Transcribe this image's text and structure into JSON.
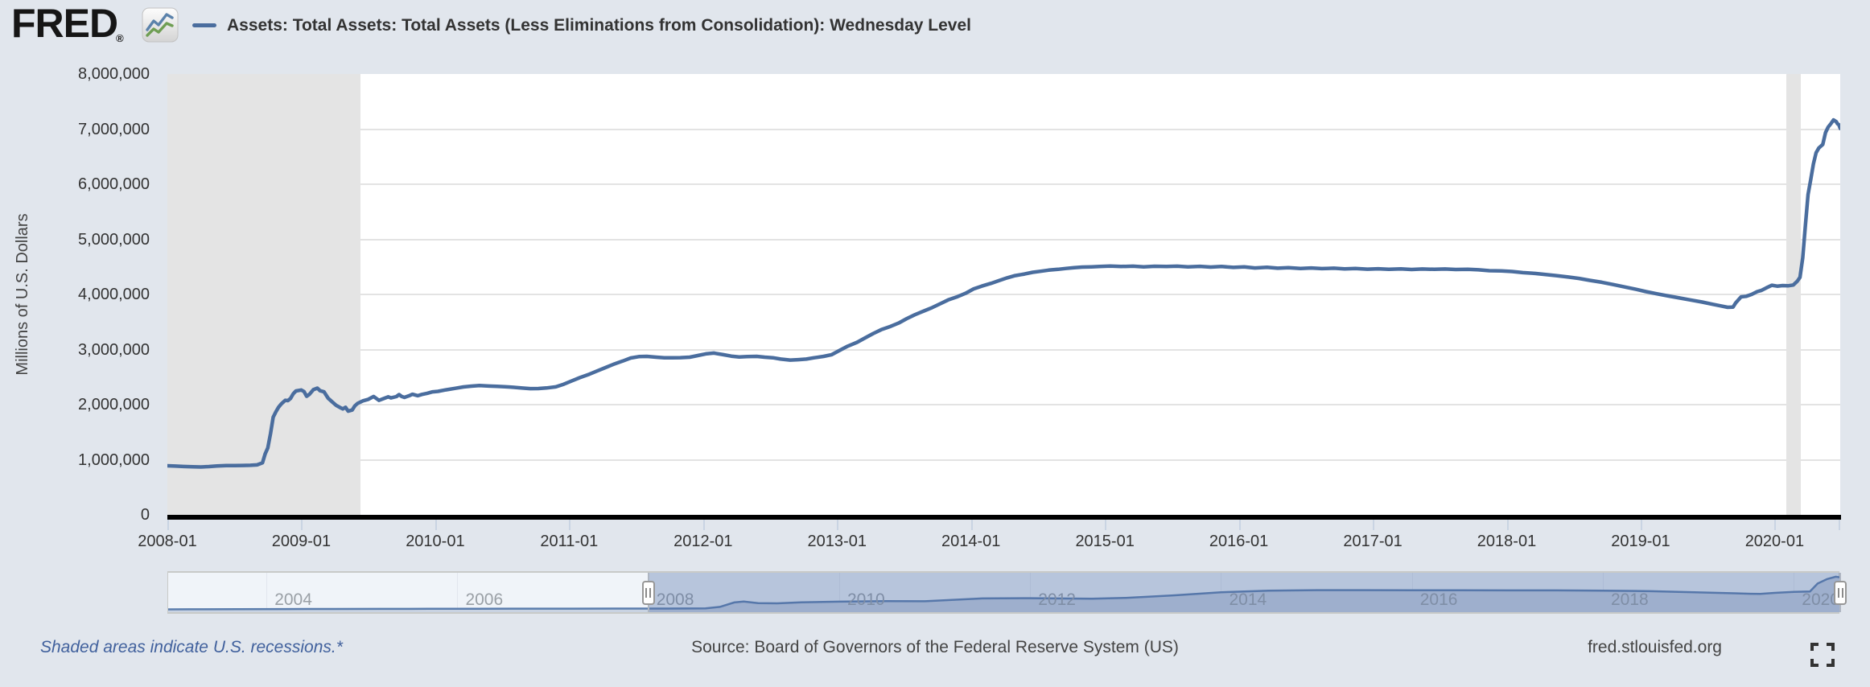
{
  "header": {
    "logo_text": "FRED",
    "logo_registered": "®",
    "legend_label": "Assets: Total Assets: Total Assets (Less Eliminations from Consolidation): Wednesday Level"
  },
  "y_axis": {
    "title": "Millions of U.S. Dollars",
    "tick_labels": [
      "8,000,000",
      "7,000,000",
      "6,000,000",
      "5,000,000",
      "4,000,000",
      "3,000,000",
      "2,000,000",
      "1,000,000",
      "0"
    ],
    "tick_values": [
      8000000,
      7000000,
      6000000,
      5000000,
      4000000,
      3000000,
      2000000,
      1000000,
      0
    ]
  },
  "x_axis": {
    "tick_labels": [
      "2008-01",
      "2009-01",
      "2010-01",
      "2011-01",
      "2012-01",
      "2013-01",
      "2014-01",
      "2015-01",
      "2016-01",
      "2017-01",
      "2018-01",
      "2019-01",
      "2020-01"
    ],
    "tick_years": [
      2008,
      2009,
      2010,
      2011,
      2012,
      2013,
      2014,
      2015,
      2016,
      2017,
      2018,
      2019,
      2020
    ]
  },
  "slider": {
    "year_labels": [
      "2004",
      "2006",
      "2008",
      "2010",
      "2012",
      "2014",
      "2016",
      "2018",
      "2020"
    ],
    "years": [
      2004,
      2006,
      2008,
      2010,
      2012,
      2014,
      2016,
      2018,
      2020
    ]
  },
  "footer": {
    "recession_note": "Shaded areas indicate U.S. recessions.*",
    "source": "Source: Board of Governors of the Federal Reserve System (US)",
    "site": "fred.stlouisfed.org"
  },
  "colors": {
    "page_bg": "#e1e6ed",
    "plot_bg": "#ffffff",
    "series_line": "#4a6d9e",
    "recession_band": "#e4e4e4",
    "gridline": "#e3e3e3",
    "axis_line": "#000000",
    "tick_mark": "#c9d4e3",
    "text_dark": "#333333",
    "slider_label": "#9aa0a6",
    "note_link_blue": "#41619d",
    "nav_fill": "#c9d3e2",
    "nav_line": "#5b7dad",
    "nav_mask": "rgba(77,110,166,0.35)"
  },
  "chart_data": {
    "type": "line",
    "title": "Assets: Total Assets: Total Assets (Less Eliminations from Consolidation): Wednesday Level",
    "ylabel": "Millions of U.S. Dollars",
    "xlabel": "",
    "x_range": [
      2008.0,
      2020.49
    ],
    "ylim": [
      0,
      8000000
    ],
    "grid": true,
    "legend_position": "top-left",
    "recessions": [
      [
        2008.0,
        2009.44
      ],
      [
        2020.085,
        2020.195
      ]
    ],
    "points": [
      [
        2008.0,
        891000
      ],
      [
        2008.06,
        884000
      ],
      [
        2008.12,
        878000
      ],
      [
        2008.19,
        871000
      ],
      [
        2008.25,
        869000
      ],
      [
        2008.31,
        876000
      ],
      [
        2008.37,
        888000
      ],
      [
        2008.44,
        893000
      ],
      [
        2008.5,
        895000
      ],
      [
        2008.56,
        897000
      ],
      [
        2008.62,
        899000
      ],
      [
        2008.67,
        906000
      ],
      [
        2008.71,
        945000
      ],
      [
        2008.73,
        1105000
      ],
      [
        2008.75,
        1214000
      ],
      [
        2008.77,
        1475000
      ],
      [
        2008.79,
        1772000
      ],
      [
        2008.81,
        1868000
      ],
      [
        2008.83,
        1953000
      ],
      [
        2008.85,
        2012000
      ],
      [
        2008.88,
        2079000
      ],
      [
        2008.9,
        2073000
      ],
      [
        2008.92,
        2112000
      ],
      [
        2008.94,
        2198000
      ],
      [
        2008.96,
        2248000
      ],
      [
        2009.0,
        2266000
      ],
      [
        2009.02,
        2238000
      ],
      [
        2009.04,
        2152000
      ],
      [
        2009.06,
        2185000
      ],
      [
        2009.09,
        2272000
      ],
      [
        2009.12,
        2299000
      ],
      [
        2009.14,
        2252000
      ],
      [
        2009.17,
        2232000
      ],
      [
        2009.2,
        2118000
      ],
      [
        2009.23,
        2052000
      ],
      [
        2009.26,
        1988000
      ],
      [
        2009.29,
        1948000
      ],
      [
        2009.31,
        1922000
      ],
      [
        2009.33,
        1952000
      ],
      [
        2009.35,
        1882000
      ],
      [
        2009.38,
        1902000
      ],
      [
        2009.4,
        1978000
      ],
      [
        2009.42,
        2022000
      ],
      [
        2009.46,
        2068000
      ],
      [
        2009.5,
        2096000
      ],
      [
        2009.52,
        2122000
      ],
      [
        2009.54,
        2148000
      ],
      [
        2009.56,
        2112000
      ],
      [
        2009.58,
        2078000
      ],
      [
        2009.62,
        2116000
      ],
      [
        2009.65,
        2142000
      ],
      [
        2009.67,
        2122000
      ],
      [
        2009.71,
        2146000
      ],
      [
        2009.73,
        2182000
      ],
      [
        2009.75,
        2148000
      ],
      [
        2009.77,
        2132000
      ],
      [
        2009.81,
        2166000
      ],
      [
        2009.83,
        2188000
      ],
      [
        2009.87,
        2162000
      ],
      [
        2009.9,
        2186000
      ],
      [
        2009.94,
        2206000
      ],
      [
        2009.98,
        2232000
      ],
      [
        2010.02,
        2241000
      ],
      [
        2010.08,
        2268000
      ],
      [
        2010.15,
        2296000
      ],
      [
        2010.21,
        2321000
      ],
      [
        2010.27,
        2336000
      ],
      [
        2010.33,
        2346000
      ],
      [
        2010.4,
        2337000
      ],
      [
        2010.46,
        2331000
      ],
      [
        2010.52,
        2326000
      ],
      [
        2010.58,
        2316000
      ],
      [
        2010.65,
        2301000
      ],
      [
        2010.71,
        2291000
      ],
      [
        2010.77,
        2292000
      ],
      [
        2010.83,
        2302000
      ],
      [
        2010.9,
        2322000
      ],
      [
        2010.96,
        2371000
      ],
      [
        2011.02,
        2432000
      ],
      [
        2011.08,
        2491000
      ],
      [
        2011.15,
        2552000
      ],
      [
        2011.21,
        2612000
      ],
      [
        2011.27,
        2671000
      ],
      [
        2011.33,
        2731000
      ],
      [
        2011.4,
        2791000
      ],
      [
        2011.46,
        2846000
      ],
      [
        2011.52,
        2871000
      ],
      [
        2011.58,
        2876000
      ],
      [
        2011.65,
        2861000
      ],
      [
        2011.71,
        2851000
      ],
      [
        2011.77,
        2849000
      ],
      [
        2011.83,
        2853000
      ],
      [
        2011.9,
        2861000
      ],
      [
        2011.96,
        2891000
      ],
      [
        2012.02,
        2921000
      ],
      [
        2012.08,
        2936000
      ],
      [
        2012.15,
        2906000
      ],
      [
        2012.21,
        2881000
      ],
      [
        2012.27,
        2866000
      ],
      [
        2012.33,
        2871000
      ],
      [
        2012.4,
        2876000
      ],
      [
        2012.46,
        2861000
      ],
      [
        2012.52,
        2851000
      ],
      [
        2012.58,
        2826000
      ],
      [
        2012.65,
        2809000
      ],
      [
        2012.71,
        2816000
      ],
      [
        2012.77,
        2826000
      ],
      [
        2012.83,
        2851000
      ],
      [
        2012.9,
        2876000
      ],
      [
        2012.96,
        2906000
      ],
      [
        2013.02,
        2986000
      ],
      [
        2013.08,
        3061000
      ],
      [
        2013.15,
        3131000
      ],
      [
        2013.21,
        3211000
      ],
      [
        2013.27,
        3291000
      ],
      [
        2013.33,
        3361000
      ],
      [
        2013.4,
        3421000
      ],
      [
        2013.46,
        3481000
      ],
      [
        2013.52,
        3561000
      ],
      [
        2013.58,
        3631000
      ],
      [
        2013.65,
        3701000
      ],
      [
        2013.71,
        3761000
      ],
      [
        2013.77,
        3831000
      ],
      [
        2013.83,
        3901000
      ],
      [
        2013.9,
        3961000
      ],
      [
        2013.96,
        4021000
      ],
      [
        2014.02,
        4101000
      ],
      [
        2014.08,
        4151000
      ],
      [
        2014.15,
        4201000
      ],
      [
        2014.21,
        4251000
      ],
      [
        2014.27,
        4301000
      ],
      [
        2014.33,
        4341000
      ],
      [
        2014.4,
        4371000
      ],
      [
        2014.46,
        4401000
      ],
      [
        2014.52,
        4421000
      ],
      [
        2014.58,
        4441000
      ],
      [
        2014.65,
        4456000
      ],
      [
        2014.71,
        4471000
      ],
      [
        2014.77,
        4486000
      ],
      [
        2014.83,
        4496000
      ],
      [
        2014.9,
        4501000
      ],
      [
        2014.96,
        4506000
      ],
      [
        2015.04,
        4516000
      ],
      [
        2015.12,
        4506000
      ],
      [
        2015.21,
        4513000
      ],
      [
        2015.29,
        4501000
      ],
      [
        2015.37,
        4511000
      ],
      [
        2015.46,
        4506000
      ],
      [
        2015.54,
        4513000
      ],
      [
        2015.62,
        4501000
      ],
      [
        2015.71,
        4509000
      ],
      [
        2015.79,
        4496000
      ],
      [
        2015.87,
        4506000
      ],
      [
        2015.96,
        4491000
      ],
      [
        2016.04,
        4501000
      ],
      [
        2016.12,
        4481000
      ],
      [
        2016.21,
        4493000
      ],
      [
        2016.29,
        4476000
      ],
      [
        2016.37,
        4486000
      ],
      [
        2016.46,
        4471000
      ],
      [
        2016.54,
        4481000
      ],
      [
        2016.62,
        4469000
      ],
      [
        2016.71,
        4476000
      ],
      [
        2016.79,
        4463000
      ],
      [
        2016.87,
        4471000
      ],
      [
        2016.96,
        4459000
      ],
      [
        2017.04,
        4466000
      ],
      [
        2017.12,
        4456000
      ],
      [
        2017.21,
        4463000
      ],
      [
        2017.29,
        4453000
      ],
      [
        2017.37,
        4461000
      ],
      [
        2017.46,
        4456000
      ],
      [
        2017.54,
        4461000
      ],
      [
        2017.62,
        4453000
      ],
      [
        2017.71,
        4456000
      ],
      [
        2017.79,
        4446000
      ],
      [
        2017.87,
        4431000
      ],
      [
        2017.96,
        4426000
      ],
      [
        2018.04,
        4416000
      ],
      [
        2018.12,
        4396000
      ],
      [
        2018.21,
        4381000
      ],
      [
        2018.29,
        4361000
      ],
      [
        2018.37,
        4341000
      ],
      [
        2018.46,
        4316000
      ],
      [
        2018.54,
        4291000
      ],
      [
        2018.62,
        4256000
      ],
      [
        2018.71,
        4221000
      ],
      [
        2018.79,
        4181000
      ],
      [
        2018.87,
        4141000
      ],
      [
        2018.96,
        4096000
      ],
      [
        2019.04,
        4051000
      ],
      [
        2019.12,
        4011000
      ],
      [
        2019.21,
        3971000
      ],
      [
        2019.29,
        3936000
      ],
      [
        2019.37,
        3901000
      ],
      [
        2019.46,
        3861000
      ],
      [
        2019.54,
        3821000
      ],
      [
        2019.6,
        3791000
      ],
      [
        2019.65,
        3766000
      ],
      [
        2019.69,
        3771000
      ],
      [
        2019.71,
        3846000
      ],
      [
        2019.75,
        3956000
      ],
      [
        2019.79,
        3966000
      ],
      [
        2019.83,
        4001000
      ],
      [
        2019.87,
        4051000
      ],
      [
        2019.9,
        4071000
      ],
      [
        2019.94,
        4121000
      ],
      [
        2019.98,
        4166000
      ],
      [
        2020.02,
        4151000
      ],
      [
        2020.06,
        4161000
      ],
      [
        2020.1,
        4156000
      ],
      [
        2020.14,
        4171000
      ],
      [
        2020.17,
        4241000
      ],
      [
        2020.19,
        4311000
      ],
      [
        2020.21,
        4666000
      ],
      [
        2020.23,
        5251000
      ],
      [
        2020.25,
        5811000
      ],
      [
        2020.27,
        6081000
      ],
      [
        2020.29,
        6371000
      ],
      [
        2020.31,
        6571000
      ],
      [
        2020.33,
        6656000
      ],
      [
        2020.36,
        6721000
      ],
      [
        2020.38,
        6936000
      ],
      [
        2020.4,
        7036000
      ],
      [
        2020.42,
        7096000
      ],
      [
        2020.44,
        7166000
      ],
      [
        2020.46,
        7136000
      ],
      [
        2020.47,
        7096000
      ],
      [
        2020.48,
        7081000
      ],
      [
        2020.49,
        7011000
      ]
    ],
    "navigator": {
      "x_range": [
        2002.97,
        2020.49
      ],
      "selected_range": [
        2008.0,
        2020.49
      ],
      "points": [
        [
          2002.97,
          720000
        ],
        [
          2003.2,
          735000
        ],
        [
          2003.7,
          755000
        ],
        [
          2004.2,
          775000
        ],
        [
          2004.7,
          790000
        ],
        [
          2005.2,
          805000
        ],
        [
          2005.7,
          820000
        ],
        [
          2006.2,
          838000
        ],
        [
          2006.7,
          852000
        ],
        [
          2007.2,
          865000
        ],
        [
          2007.7,
          880000
        ],
        [
          2008.2,
          872000
        ],
        [
          2008.6,
          900000
        ],
        [
          2008.75,
          1214000
        ],
        [
          2008.9,
          2080000
        ],
        [
          2009.0,
          2265000
        ],
        [
          2009.15,
          1950000
        ],
        [
          2009.35,
          1900000
        ],
        [
          2009.6,
          2100000
        ],
        [
          2010.0,
          2240000
        ],
        [
          2010.5,
          2330000
        ],
        [
          2010.9,
          2320000
        ],
        [
          2011.5,
          2870000
        ],
        [
          2012.0,
          2920000
        ],
        [
          2012.65,
          2810000
        ],
        [
          2013.0,
          2985000
        ],
        [
          2013.5,
          3480000
        ],
        [
          2014.0,
          4100000
        ],
        [
          2014.5,
          4420000
        ],
        [
          2015.0,
          4510000
        ],
        [
          2015.5,
          4508000
        ],
        [
          2016.0,
          4490000
        ],
        [
          2016.5,
          4478000
        ],
        [
          2017.0,
          4462000
        ],
        [
          2017.5,
          4458000
        ],
        [
          2018.0,
          4420000
        ],
        [
          2018.5,
          4300000
        ],
        [
          2019.0,
          4060000
        ],
        [
          2019.55,
          3800000
        ],
        [
          2019.65,
          3765000
        ],
        [
          2019.8,
          3970000
        ],
        [
          2020.0,
          4160000
        ],
        [
          2020.17,
          4240000
        ],
        [
          2020.25,
          5810000
        ],
        [
          2020.35,
          6700000
        ],
        [
          2020.44,
          7165000
        ],
        [
          2020.49,
          7010000
        ]
      ]
    }
  }
}
